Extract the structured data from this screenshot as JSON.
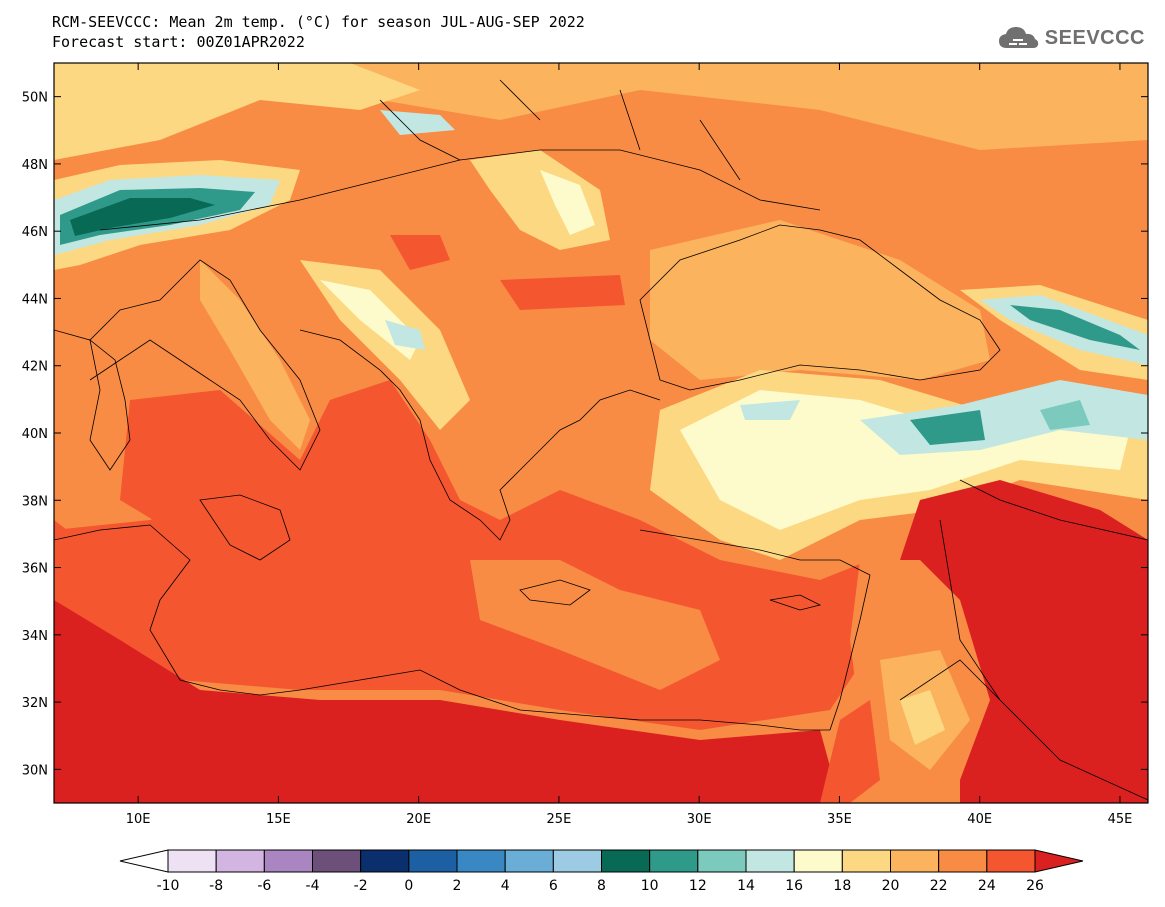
{
  "header": {
    "title_line1": "RCM-SEEVCCC: Mean 2m temp. (°C) for season JUL-AUG-SEP 2022",
    "title_line2": "Forecast start: 00Z01APR2022"
  },
  "logo": {
    "text": "SEEVCCC",
    "icon": "cloud-icon"
  },
  "map": {
    "lon_range": [
      7,
      46
    ],
    "lat_range": [
      29,
      51
    ],
    "lat_ticks": [
      "50N",
      "48N",
      "46N",
      "44N",
      "42N",
      "40N",
      "38N",
      "36N",
      "34N",
      "32N",
      "30N"
    ],
    "lon_ticks": [
      "10E",
      "15E",
      "20E",
      "25E",
      "30E",
      "35E",
      "40E",
      "45E"
    ]
  },
  "colorbar": {
    "labels": [
      "-10",
      "-8",
      "-6",
      "-4",
      "-2",
      "0",
      "2",
      "4",
      "6",
      "8",
      "10",
      "12",
      "14",
      "16",
      "18",
      "20",
      "22",
      "24",
      "26"
    ],
    "colors": [
      "#ffffff",
      "#ede1f3",
      "#d3b5e2",
      "#a986c2",
      "#6c5079",
      "#0b2e6c",
      "#1d5fa3",
      "#3a88c3",
      "#6aaed8",
      "#9ccbe3",
      "#086955",
      "#2f9a8a",
      "#7ccabe",
      "#c2e7e2",
      "#fdfbcb",
      "#fdd882",
      "#fbb35d",
      "#f88c45",
      "#f4562f",
      "#db2020"
    ],
    "under_color": "#ffffff",
    "over_color": "#db2020"
  }
}
